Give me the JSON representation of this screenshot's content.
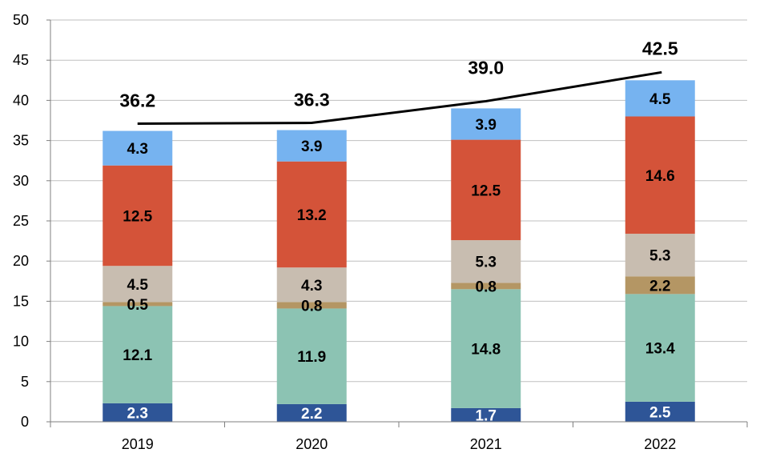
{
  "chart_data": {
    "type": "bar",
    "stacked": true,
    "title": "",
    "xlabel": "",
    "ylabel": "",
    "ylim": [
      0,
      50
    ],
    "yticks": [
      0,
      5,
      10,
      15,
      20,
      25,
      30,
      35,
      40,
      45,
      50
    ],
    "grid": true,
    "legend": "none",
    "categories": [
      "2019",
      "2020",
      "2021",
      "2022"
    ],
    "series": [
      {
        "name": "segment-1",
        "color": "#2e5597",
        "label_color": "#ffffff",
        "values": [
          2.3,
          2.2,
          1.7,
          2.5
        ]
      },
      {
        "name": "segment-2",
        "color": "#8cc3b3",
        "label_color": "#000000",
        "values": [
          12.1,
          11.9,
          14.8,
          13.4
        ]
      },
      {
        "name": "segment-3",
        "color": "#b49664",
        "label_color": "#000000",
        "values": [
          0.5,
          0.8,
          0.8,
          2.2
        ]
      },
      {
        "name": "segment-4",
        "color": "#c8bdb0",
        "label_color": "#000000",
        "values": [
          4.5,
          4.3,
          5.3,
          5.3
        ]
      },
      {
        "name": "segment-5",
        "color": "#d45339",
        "label_color": "#000000",
        "values": [
          12.5,
          13.2,
          12.5,
          14.6
        ]
      },
      {
        "name": "segment-6",
        "color": "#76b3f0",
        "label_color": "#000000",
        "values": [
          4.3,
          3.9,
          3.9,
          4.5
        ]
      }
    ],
    "totals": {
      "values": [
        36.2,
        36.3,
        39.0,
        42.5
      ],
      "labels": [
        "36.2",
        "36.3",
        "39.0",
        "42.5"
      ],
      "line_color": "#000000"
    },
    "gridline_color": "#bfbfbf",
    "axis_color": "#7f7f7f"
  }
}
